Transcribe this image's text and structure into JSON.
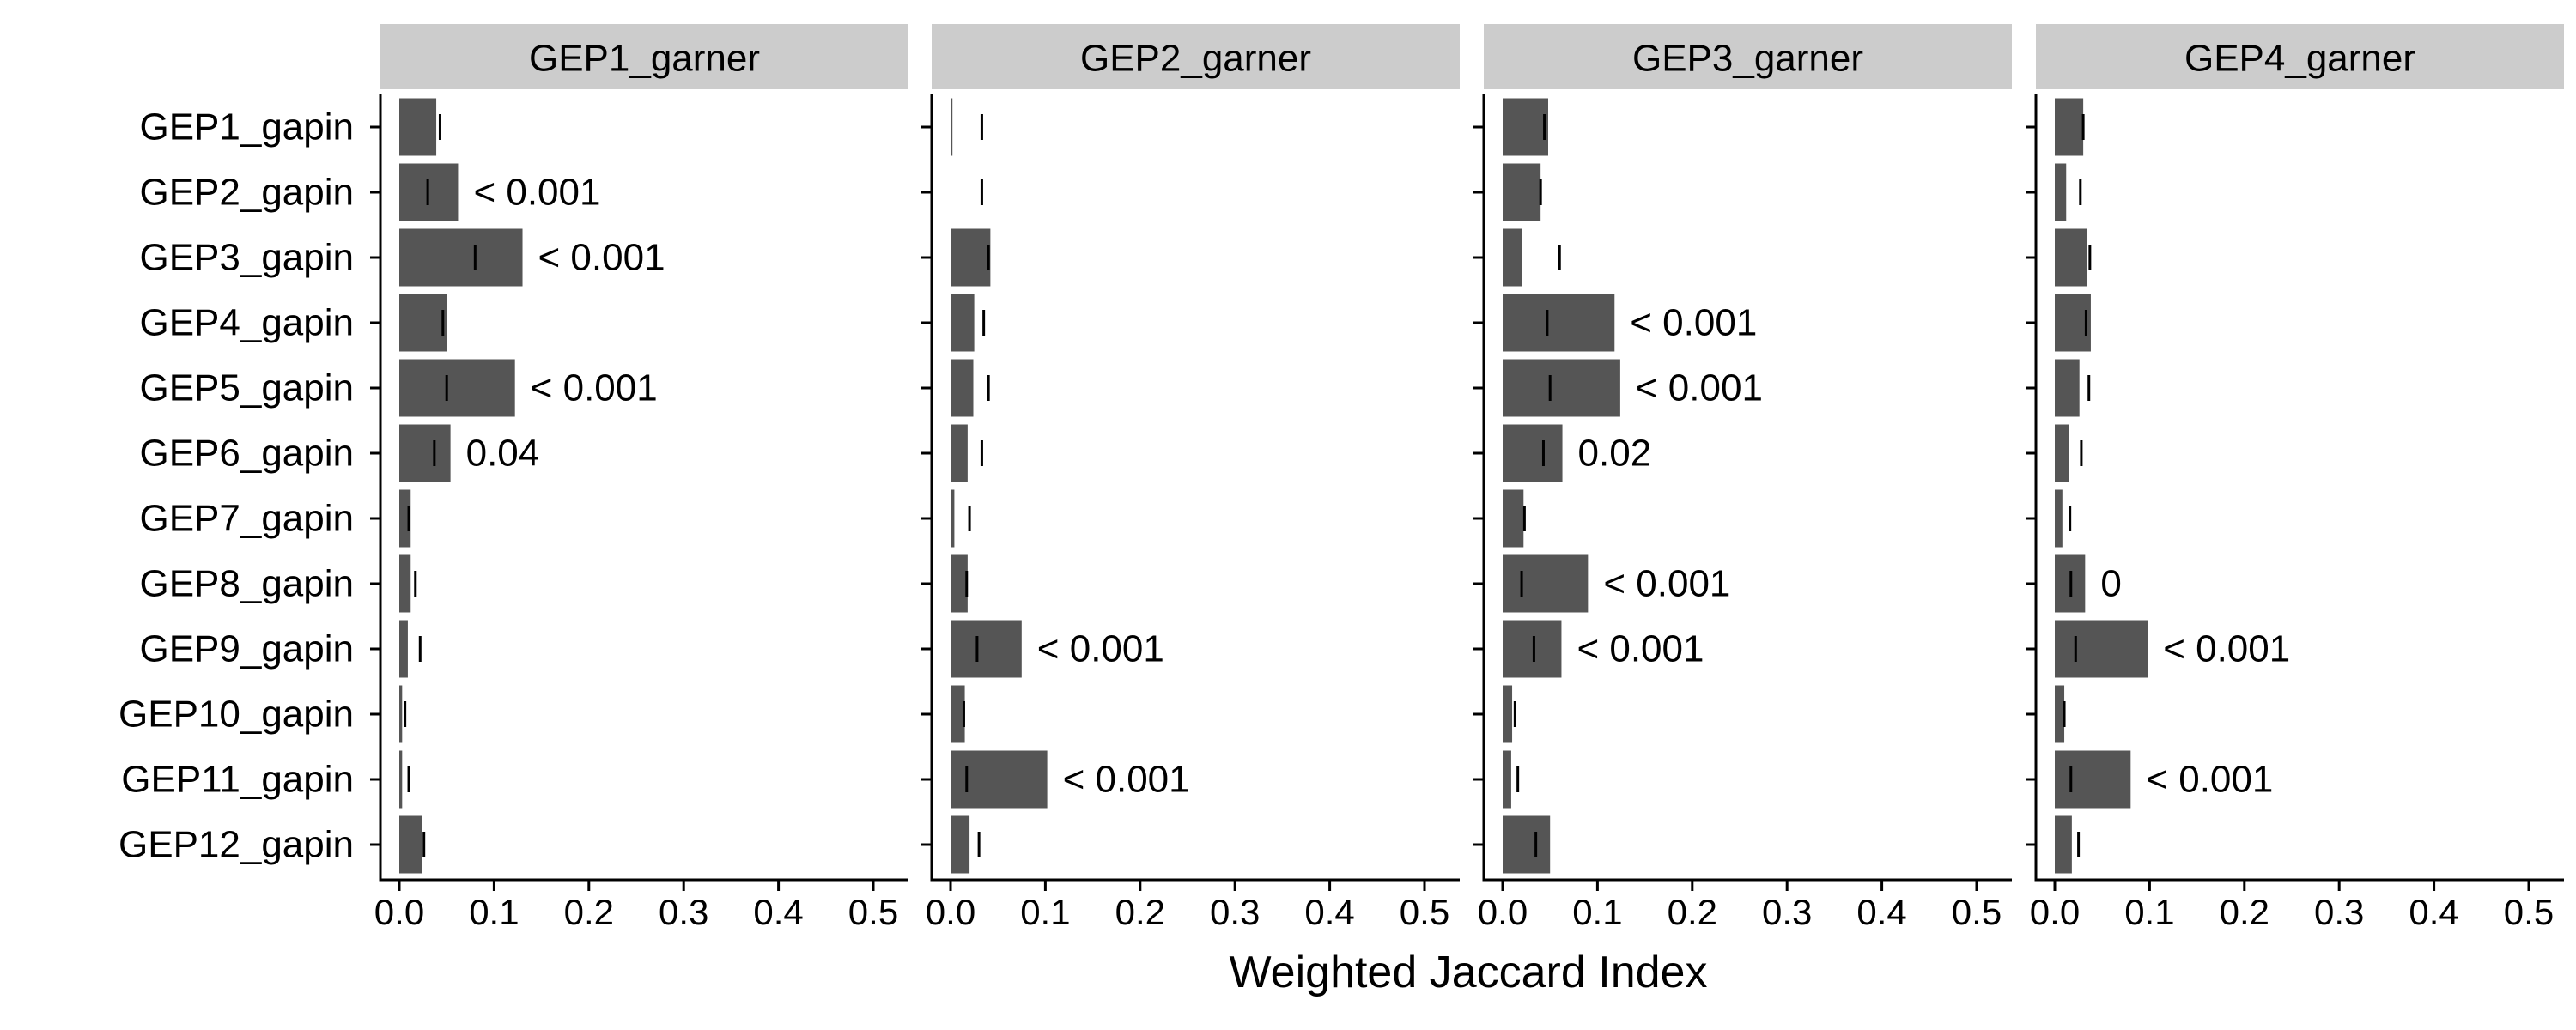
{
  "chart_data": {
    "type": "bar",
    "orientation": "horizontal",
    "facet_layout": "1x4",
    "xlabel": "Weighted Jaccard Index",
    "xlim": [
      0,
      0.5
    ],
    "x_ticks": [
      0,
      0.1,
      0.2,
      0.3,
      0.4,
      0.5
    ],
    "x_tick_labels": [
      "0.0",
      "0.1",
      "0.2",
      "0.3",
      "0.4",
      "0.5"
    ],
    "categories": [
      "GEP1_gapin",
      "GEP2_gapin",
      "GEP3_gapin",
      "GEP4_gapin",
      "GEP5_gapin",
      "GEP6_gapin",
      "GEP7_gapin",
      "GEP8_gapin",
      "GEP9_gapin",
      "GEP10_gapin",
      "GEP11_gapin",
      "GEP12_gapin"
    ],
    "grid": false,
    "legend": "none",
    "colors": {
      "bar": "#555555",
      "strip": "#cccccc",
      "marker": "#000000",
      "axis": "#000000"
    },
    "series": [
      {
        "name": "GEP1_garner",
        "values": [
          0.039,
          0.062,
          0.13,
          0.05,
          0.122,
          0.054,
          0.012,
          0.012,
          0.009,
          0.003,
          0.003,
          0.024
        ],
        "null_values": [
          0.043,
          0.03,
          0.08,
          0.046,
          0.05,
          0.037,
          0.01,
          0.017,
          0.022,
          0.006,
          0.01,
          0.026
        ],
        "labels": [
          "",
          "< 0.001",
          "< 0.001",
          "",
          "< 0.001",
          "0.04",
          "",
          "",
          "",
          "",
          "",
          ""
        ]
      },
      {
        "name": "GEP2_garner",
        "values": [
          0.002,
          0.0,
          0.042,
          0.025,
          0.024,
          0.018,
          0.004,
          0.018,
          0.075,
          0.015,
          0.102,
          0.02
        ],
        "null_values": [
          0.033,
          0.033,
          0.04,
          0.035,
          0.04,
          0.033,
          0.02,
          0.017,
          0.028,
          0.014,
          0.017,
          0.03
        ],
        "labels": [
          "",
          "",
          "",
          "",
          "",
          "",
          "",
          "",
          "< 0.001",
          "",
          "< 0.001",
          ""
        ]
      },
      {
        "name": "GEP3_garner",
        "values": [
          0.048,
          0.04,
          0.02,
          0.118,
          0.124,
          0.063,
          0.022,
          0.09,
          0.062,
          0.01,
          0.009,
          0.05
        ],
        "null_values": [
          0.044,
          0.04,
          0.06,
          0.047,
          0.05,
          0.043,
          0.023,
          0.02,
          0.033,
          0.013,
          0.016,
          0.035
        ],
        "labels": [
          "",
          "",
          "",
          "< 0.001",
          "< 0.001",
          "0.02",
          "",
          "< 0.001",
          "< 0.001",
          "",
          "",
          ""
        ]
      },
      {
        "name": "GEP4_garner",
        "values": [
          0.03,
          0.012,
          0.034,
          0.038,
          0.026,
          0.015,
          0.008,
          0.032,
          0.098,
          0.01,
          0.08,
          0.018
        ],
        "null_values": [
          0.03,
          0.027,
          0.037,
          0.033,
          0.036,
          0.028,
          0.016,
          0.017,
          0.022,
          0.01,
          0.017,
          0.025
        ],
        "labels": [
          "",
          "",
          "",
          "",
          "",
          "",
          "",
          "0",
          "< 0.001",
          "",
          "< 0.001",
          ""
        ]
      }
    ]
  }
}
